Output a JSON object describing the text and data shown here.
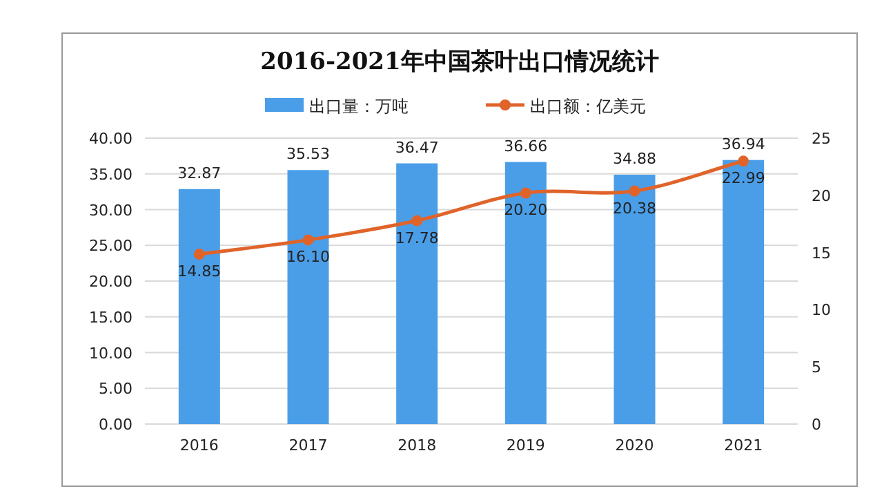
{
  "chart_data": {
    "type": "bar",
    "title": "2016-2021年中国茶叶出口情况统计",
    "categories": [
      "2016",
      "2017",
      "2018",
      "2019",
      "2020",
      "2021"
    ],
    "series": [
      {
        "name": "出口量：万吨",
        "color": "#4a9ee8",
        "values": [
          32.87,
          35.53,
          36.47,
          36.66,
          34.88,
          36.94
        ],
        "value_labels": [
          "32.87",
          "35.53",
          "36.47",
          "36.66",
          "34.88",
          "36.94"
        ]
      },
      {
        "name": "出口额：亿美元",
        "type": "line",
        "axis": "y2",
        "color": "#e0642a",
        "values": [
          14.85,
          16.1,
          17.78,
          20.2,
          20.38,
          22.99
        ],
        "value_labels": [
          "14.85",
          "16.10",
          "17.78",
          "20.20",
          "20.38",
          "22.99"
        ]
      }
    ],
    "ylim": [
      0,
      40
    ],
    "yticks": [
      {
        "value": 0,
        "label": "0.00"
      },
      {
        "value": 5,
        "label": "5.00"
      },
      {
        "value": 10,
        "label": "10.00"
      },
      {
        "value": 15,
        "label": "15.00"
      },
      {
        "value": 20,
        "label": "20.00"
      },
      {
        "value": 25,
        "label": "25.00"
      },
      {
        "value": 30,
        "label": "30.00"
      },
      {
        "value": 35,
        "label": "35.00"
      },
      {
        "value": 40,
        "label": "40.00"
      }
    ],
    "y2lim": [
      0,
      25
    ],
    "y2ticks": [
      0,
      5,
      10,
      15,
      20,
      25
    ],
    "grid": "y",
    "legend": "top",
    "marker": "circle"
  }
}
